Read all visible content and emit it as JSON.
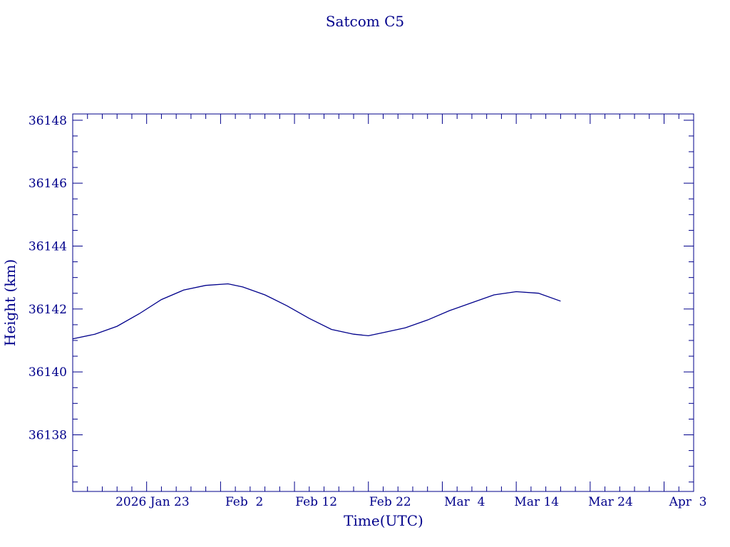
{
  "chart_data": {
    "type": "line",
    "title": "Satcom C5",
    "xlabel": "Time(UTC)",
    "ylabel": "Height (km)",
    "color": "#00008b",
    "grid": false,
    "xlim": [
      "2026-01-13",
      "2026-04-07"
    ],
    "ylim": [
      36136.2,
      36148.2
    ],
    "x_ticks": [
      "2026-01-23",
      "2026-02-02",
      "2026-02-12",
      "2026-02-22",
      "2026-03-04",
      "2026-03-14",
      "2026-03-24",
      "2026-04-03"
    ],
    "x_tick_labels": [
      "2026 Jan 23",
      "Feb  2",
      "Feb 12",
      "Feb 22",
      "Mar  4",
      "Mar 14",
      "Mar 24",
      "Apr  3"
    ],
    "y_ticks": [
      36138,
      36140,
      36142,
      36144,
      36146,
      36148
    ],
    "y_tick_labels": [
      "36138",
      "36140",
      "36142",
      "36144",
      "36146",
      "36148"
    ],
    "series": [
      {
        "x": [
          "2026-01-13",
          "2026-01-16",
          "2026-01-19",
          "2026-01-22",
          "2026-01-25",
          "2026-01-28",
          "2026-01-31",
          "2026-02-03",
          "2026-02-05",
          "2026-02-08",
          "2026-02-11",
          "2026-02-14",
          "2026-02-17",
          "2026-02-20",
          "2026-02-22",
          "2026-02-24",
          "2026-02-27",
          "2026-03-02",
          "2026-03-05",
          "2026-03-08",
          "2026-03-11",
          "2026-03-14",
          "2026-03-17",
          "2026-03-20"
        ],
        "y": [
          36141.05,
          36141.2,
          36141.45,
          36141.85,
          36142.3,
          36142.6,
          36142.75,
          36142.8,
          36142.7,
          36142.45,
          36142.1,
          36141.7,
          36141.35,
          36141.2,
          36141.15,
          36141.25,
          36141.4,
          36141.65,
          36141.95,
          36142.2,
          36142.45,
          36142.55,
          36142.5,
          36142.25
        ]
      }
    ]
  }
}
